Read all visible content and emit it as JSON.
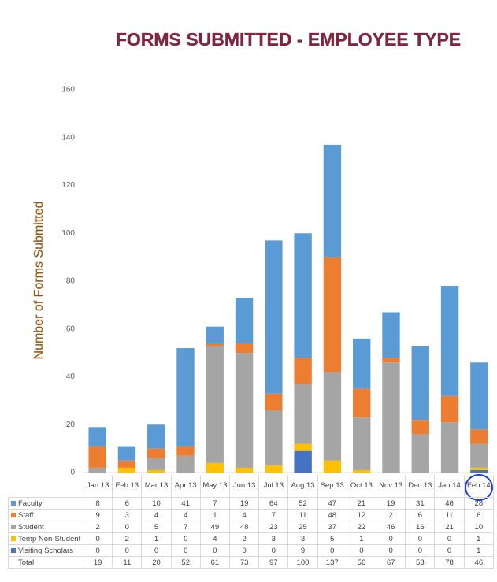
{
  "chart_data": {
    "type": "bar",
    "stacked": true,
    "title": "FORMS SUBMITTED - EMPLOYEE TYPE",
    "y_label": "Number of Forms Submitted",
    "categories": [
      "Jan 13",
      "Feb 13",
      "Mar 13",
      "Apr 13",
      "May 13",
      "Jun 13",
      "Jul 13",
      "Aug 13",
      "Sep 13",
      "Oct 13",
      "Nov 13",
      "Dec 13",
      "Jan 14",
      "Feb 14"
    ],
    "series": [
      {
        "name": "Faculty",
        "color": "#5b9bd5",
        "values": [
          8,
          6,
          10,
          41,
          7,
          19,
          64,
          52,
          47,
          21,
          19,
          31,
          46,
          28
        ]
      },
      {
        "name": "Staff",
        "color": "#ed7d31",
        "values": [
          9,
          3,
          4,
          4,
          1,
          4,
          7,
          11,
          48,
          12,
          2,
          6,
          11,
          6
        ]
      },
      {
        "name": "Student",
        "color": "#a5a5a5",
        "values": [
          2,
          0,
          5,
          7,
          49,
          48,
          23,
          25,
          37,
          22,
          46,
          16,
          21,
          10
        ]
      },
      {
        "name": "Temp Non-Student",
        "color": "#ffc000",
        "values": [
          0,
          2,
          1,
          0,
          4,
          2,
          3,
          3,
          5,
          1,
          0,
          0,
          0,
          1
        ]
      },
      {
        "name": "Visiting Scholars",
        "color": "#4472c4",
        "values": [
          0,
          0,
          0,
          0,
          0,
          0,
          0,
          9,
          0,
          0,
          0,
          0,
          0,
          1
        ]
      }
    ],
    "totals_label": "Total",
    "totals": [
      19,
      11,
      20,
      52,
      61,
      73,
      97,
      100,
      137,
      56,
      67,
      53,
      78,
      46
    ],
    "ylim": [
      0,
      160
    ],
    "yticks": [
      0,
      20,
      40,
      60,
      80,
      100,
      120,
      140,
      160
    ],
    "grid": false
  }
}
